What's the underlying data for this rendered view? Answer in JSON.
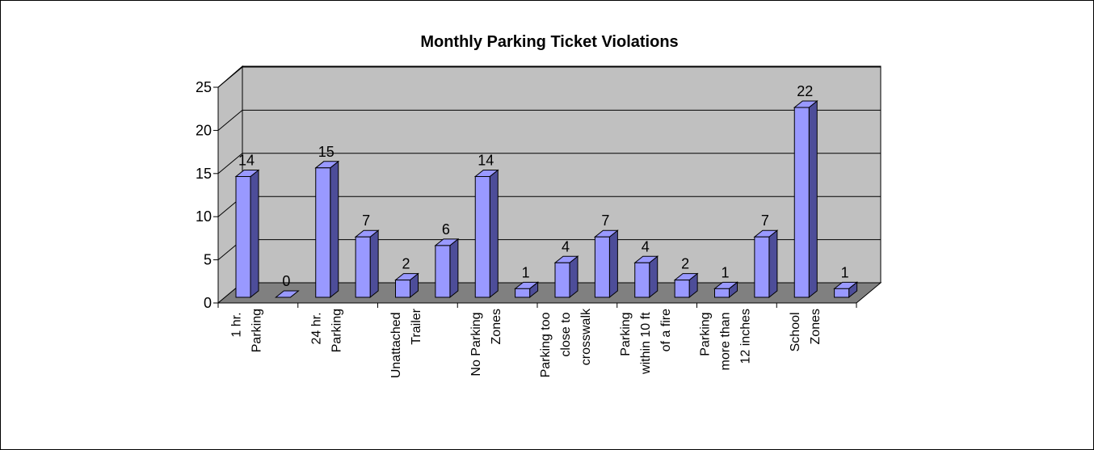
{
  "chart_data": {
    "type": "bar3d",
    "title": "Monthly Parking Ticket Violations",
    "categories": [
      "1 hr. Parking",
      null,
      "24 hr. Parking",
      null,
      "Unattached Trailer",
      null,
      "No Parking Zones",
      null,
      "Parking too close to crosswalk",
      null,
      "Parking within 10 ft of a fire",
      null,
      "Parking more than 12 inches",
      null,
      "School Zones",
      null
    ],
    "values": [
      14,
      0,
      15,
      7,
      2,
      6,
      14,
      1,
      4,
      7,
      4,
      2,
      1,
      7,
      22,
      1
    ],
    "color": "#9999ff",
    "ylim": [
      0,
      25
    ],
    "yticks": [
      0,
      5,
      10,
      15,
      20,
      25
    ],
    "grid": true
  }
}
